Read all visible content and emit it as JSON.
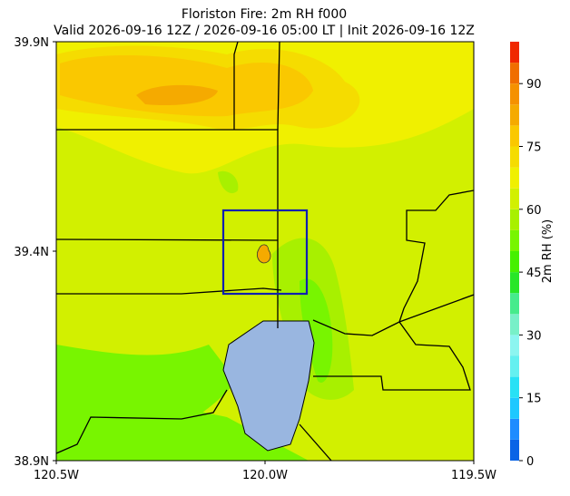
{
  "chart_data": {
    "type": "filled-map",
    "title": "Floriston Fire: 2m RH f000",
    "subtitle": "Valid 2026-09-16 12Z / 2026-09-16 05:00 LT | Init 2026-09-16 12Z",
    "xlim": [
      -120.5,
      -119.5
    ],
    "ylim": [
      38.9,
      39.9
    ],
    "xticks": [
      {
        "value": -120.5,
        "label": "120.5W"
      },
      {
        "value": -120.0,
        "label": "120.0W"
      },
      {
        "value": -119.5,
        "label": "119.5W"
      }
    ],
    "yticks": [
      {
        "value": 38.9,
        "label": "38.9N"
      },
      {
        "value": 39.4,
        "label": "39.4N"
      },
      {
        "value": 39.9,
        "label": "39.9N"
      }
    ],
    "colorbar": {
      "label": "2m RH (%)",
      "clim": [
        0,
        100
      ],
      "ticks": [
        0,
        15,
        30,
        45,
        60,
        75,
        90
      ],
      "levels": [
        0,
        5,
        10,
        15,
        20,
        25,
        30,
        35,
        40,
        45,
        50,
        55,
        60,
        65,
        70,
        75,
        80,
        85,
        90,
        95,
        100
      ],
      "colors": [
        "#0a64e6",
        "#1e8cff",
        "#1ec8ff",
        "#28e1f5",
        "#64f0f0",
        "#8cf5f0",
        "#78f0c8",
        "#46eb8c",
        "#28e628",
        "#46f000",
        "#78f500",
        "#a8f000",
        "#d2f000",
        "#f0f000",
        "#f5dc00",
        "#fac800",
        "#f5aa00",
        "#f59100",
        "#f06e00",
        "#f02800"
      ]
    }
  }
}
